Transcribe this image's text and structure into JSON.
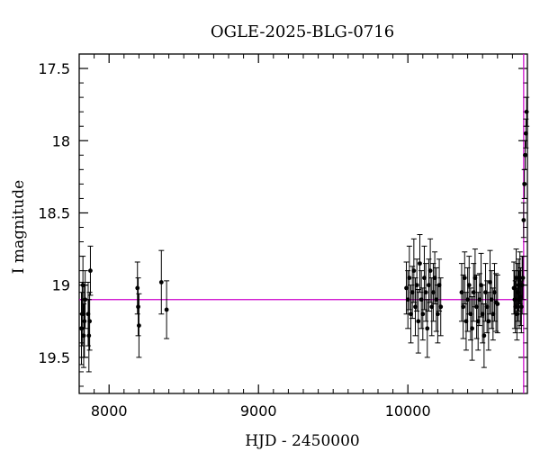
{
  "chart_data": {
    "type": "scatter",
    "title": "OGLE-2025-BLG-0716",
    "xlabel": "HJD - 2450000",
    "ylabel": "I magnitude",
    "xlim": [
      7800,
      10800
    ],
    "ylim": [
      19.75,
      17.4
    ],
    "y_inverted": true,
    "grid": false,
    "legend": "none",
    "x_ticks": [
      8000,
      9000,
      10000
    ],
    "x_tick_labels": [
      "8000",
      "9000",
      "10000"
    ],
    "y_ticks": [
      17.5,
      18,
      18.5,
      19,
      19.5
    ],
    "y_tick_labels": [
      "17.5",
      "18",
      "18.5",
      "19",
      "19.5"
    ],
    "baseline": {
      "y": 19.1,
      "color": "#cc00cc"
    },
    "event_time": {
      "x": 10775,
      "color": "#cc00cc"
    },
    "point_color": "#000000",
    "series": [
      {
        "x": [
          7815,
          7820,
          7825,
          7830,
          7835,
          7840,
          7860,
          7865,
          7870,
          7875,
          8190,
          8195,
          8200,
          8350,
          8385,
          9990,
          10000,
          10010,
          10020,
          10030,
          10040,
          10050,
          10060,
          10070,
          10080,
          10090,
          10100,
          10110,
          10120,
          10130,
          10140,
          10150,
          10160,
          10170,
          10180,
          10190,
          10200,
          10210,
          10220,
          10360,
          10370,
          10380,
          10390,
          10400,
          10410,
          10420,
          10430,
          10440,
          10450,
          10460,
          10470,
          10480,
          10490,
          10500,
          10510,
          10520,
          10530,
          10540,
          10550,
          10560,
          10570,
          10580,
          10590,
          10600,
          10710,
          10715,
          10720,
          10725,
          10730,
          10735,
          10740,
          10745,
          10750,
          10755,
          10760,
          10765,
          10770,
          10775,
          10780,
          10785,
          10790,
          10795
        ],
        "y": [
          19.3,
          19.2,
          19.0,
          19.35,
          19.25,
          19.1,
          19.2,
          19.35,
          19.25,
          18.9,
          19.02,
          19.15,
          19.28,
          18.98,
          19.17,
          19.02,
          19.1,
          18.95,
          19.2,
          19.05,
          18.9,
          19.15,
          19.0,
          19.25,
          18.85,
          19.1,
          19.2,
          18.95,
          19.05,
          19.3,
          19.0,
          18.9,
          19.15,
          19.05,
          18.95,
          19.1,
          19.2,
          19.0,
          19.15,
          19.05,
          19.15,
          18.95,
          19.25,
          19.1,
          19.0,
          19.2,
          19.3,
          19.05,
          18.95,
          19.15,
          19.25,
          19.1,
          19.0,
          19.2,
          19.35,
          19.05,
          19.15,
          19.25,
          18.98,
          19.1,
          19.2,
          19.05,
          19.12,
          19.13,
          19.02,
          19.1,
          19.15,
          18.95,
          19.2,
          19.05,
          19.0,
          19.1,
          18.95,
          19.08,
          19.15,
          19.0,
          18.95,
          18.55,
          18.3,
          18.1,
          17.95,
          17.8
        ],
        "err": [
          0.25,
          0.22,
          0.2,
          0.22,
          0.25,
          0.2,
          0.22,
          0.25,
          0.2,
          0.17,
          0.18,
          0.2,
          0.22,
          0.22,
          0.2,
          0.18,
          0.2,
          0.22,
          0.2,
          0.18,
          0.22,
          0.2,
          0.18,
          0.22,
          0.2,
          0.2,
          0.18,
          0.22,
          0.2,
          0.2,
          0.18,
          0.22,
          0.2,
          0.2,
          0.18,
          0.22,
          0.2,
          0.18,
          0.2,
          0.2,
          0.22,
          0.18,
          0.2,
          0.22,
          0.2,
          0.18,
          0.22,
          0.2,
          0.2,
          0.22,
          0.2,
          0.18,
          0.22,
          0.2,
          0.22,
          0.2,
          0.18,
          0.2,
          0.22,
          0.2,
          0.18,
          0.2,
          0.2,
          0.2,
          0.18,
          0.2,
          0.18,
          0.2,
          0.18,
          0.2,
          0.18,
          0.2,
          0.18,
          0.2,
          0.18,
          0.2,
          0.15,
          0.12,
          0.1,
          0.1,
          0.1,
          0.1
        ]
      }
    ]
  }
}
